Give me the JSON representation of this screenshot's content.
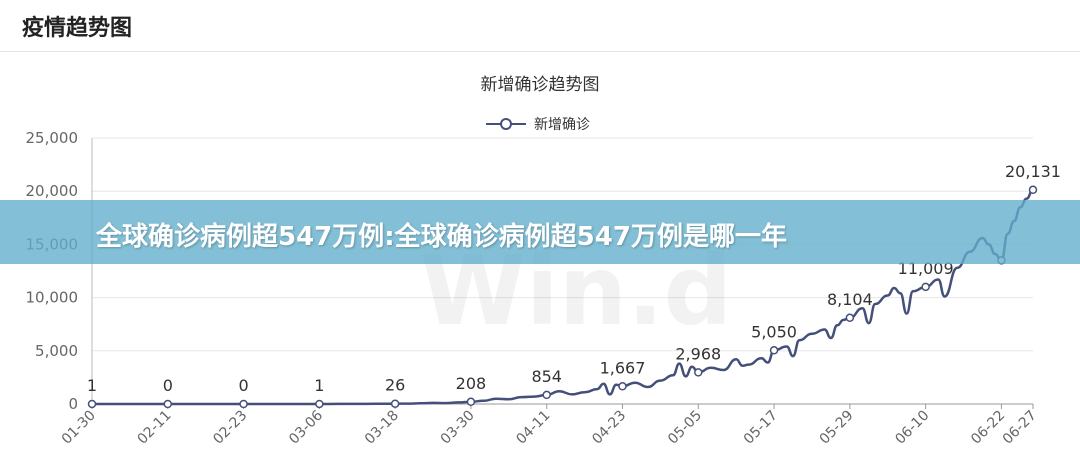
{
  "panel": {
    "title": "疫情趋势图"
  },
  "banner": {
    "text": "全球确诊病例超547万例:全球确诊病例超547万例是哪一年"
  },
  "watermark": {
    "text": "Win.d"
  },
  "chart_data": {
    "type": "line",
    "title": "新增确诊趋势图",
    "legend": {
      "position": "top-center"
    },
    "series": [
      {
        "name": "新增确诊",
        "color": "#44507a"
      }
    ],
    "y_ticks": [
      0,
      5000,
      10000,
      15000,
      20000,
      25000
    ],
    "y_tick_labels": [
      "0",
      "5,000",
      "10,000",
      "15,000",
      "20,000",
      "25,000"
    ],
    "ylim": [
      0,
      25000
    ],
    "x_ticks": [
      "01-30",
      "02-11",
      "02-23",
      "03-06",
      "03-18",
      "03-30",
      "04-11",
      "04-23",
      "05-05",
      "05-17",
      "05-29",
      "06-10",
      "06-22",
      "06-27"
    ],
    "marked_points": [
      {
        "x": "01-30",
        "y": 1,
        "label": "1"
      },
      {
        "x": "02-11",
        "y": 0,
        "label": "0"
      },
      {
        "x": "02-23",
        "y": 0,
        "label": "0"
      },
      {
        "x": "03-06",
        "y": 1,
        "label": "1"
      },
      {
        "x": "03-18",
        "y": 26,
        "label": "26"
      },
      {
        "x": "03-30",
        "y": 208,
        "label": "208"
      },
      {
        "x": "04-11",
        "y": 854,
        "label": "854"
      },
      {
        "x": "04-23",
        "y": 1667,
        "label": "1,667"
      },
      {
        "x": "05-05",
        "y": 2968,
        "label": "2,968"
      },
      {
        "x": "05-17",
        "y": 5050,
        "label": "5,050"
      },
      {
        "x": "05-29",
        "y": 8104,
        "label": "8,104"
      },
      {
        "x": "06-10",
        "y": 11009,
        "label": "11,009"
      },
      {
        "x": "06-22",
        "y": 13500,
        "label": ""
      },
      {
        "x": "06-27",
        "y": 20131,
        "label": "20,131"
      }
    ],
    "points": [
      [
        "01-30",
        1
      ],
      [
        "01-31",
        2
      ],
      [
        "02-02",
        1
      ],
      [
        "02-04",
        3
      ],
      [
        "02-06",
        2
      ],
      [
        "02-08",
        2
      ],
      [
        "02-11",
        0
      ],
      [
        "02-14",
        1
      ],
      [
        "02-17",
        2
      ],
      [
        "02-20",
        1
      ],
      [
        "02-23",
        0
      ],
      [
        "02-26",
        2
      ],
      [
        "02-29",
        1
      ],
      [
        "03-03",
        3
      ],
      [
        "03-06",
        1
      ],
      [
        "03-09",
        8
      ],
      [
        "03-12",
        12
      ],
      [
        "03-15",
        18
      ],
      [
        "03-18",
        26
      ],
      [
        "03-20",
        40
      ],
      [
        "03-22",
        70
      ],
      [
        "03-24",
        100
      ],
      [
        "03-26",
        80
      ],
      [
        "03-28",
        150
      ],
      [
        "03-30",
        208
      ],
      [
        "04-01",
        300
      ],
      [
        "04-03",
        500
      ],
      [
        "04-05",
        450
      ],
      [
        "04-07",
        650
      ],
      [
        "04-09",
        700
      ],
      [
        "04-11",
        854
      ],
      [
        "04-13",
        1200
      ],
      [
        "04-15",
        900
      ],
      [
        "04-17",
        1100
      ],
      [
        "04-19",
        1400
      ],
      [
        "04-20",
        1900
      ],
      [
        "04-21",
        900
      ],
      [
        "04-22",
        1800
      ],
      [
        "04-23",
        1667
      ],
      [
        "04-25",
        2000
      ],
      [
        "04-27",
        1600
      ],
      [
        "04-29",
        2200
      ],
      [
        "05-01",
        2700
      ],
      [
        "05-02",
        3800
      ],
      [
        "05-03",
        2600
      ],
      [
        "05-04",
        3500
      ],
      [
        "05-05",
        2968
      ],
      [
        "05-07",
        3400
      ],
      [
        "05-09",
        3200
      ],
      [
        "05-11",
        4200
      ],
      [
        "05-12",
        3600
      ],
      [
        "05-13",
        3700
      ],
      [
        "05-15",
        4300
      ],
      [
        "05-16",
        3900
      ],
      [
        "05-17",
        5050
      ],
      [
        "05-19",
        5400
      ],
      [
        "05-20",
        4500
      ],
      [
        "05-21",
        6000
      ],
      [
        "05-23",
        6600
      ],
      [
        "05-25",
        7000
      ],
      [
        "05-26",
        6200
      ],
      [
        "05-27",
        7400
      ],
      [
        "05-28",
        7900
      ],
      [
        "05-29",
        8104
      ],
      [
        "05-31",
        9000
      ],
      [
        "06-01",
        7600
      ],
      [
        "06-02",
        9400
      ],
      [
        "06-04",
        10200
      ],
      [
        "06-05",
        10900
      ],
      [
        "06-06",
        10400
      ],
      [
        "06-07",
        8500
      ],
      [
        "06-08",
        10600
      ],
      [
        "06-10",
        11009
      ],
      [
        "06-12",
        11700
      ],
      [
        "06-13",
        10100
      ],
      [
        "06-15",
        12800
      ],
      [
        "06-17",
        14300
      ],
      [
        "06-19",
        15600
      ],
      [
        "06-20",
        15000
      ],
      [
        "06-21",
        14100
      ],
      [
        "06-22",
        13500
      ],
      [
        "06-23",
        16000
      ],
      [
        "06-24",
        17200
      ],
      [
        "06-25",
        18500
      ],
      [
        "06-26",
        19300
      ],
      [
        "06-27",
        20131
      ]
    ]
  }
}
